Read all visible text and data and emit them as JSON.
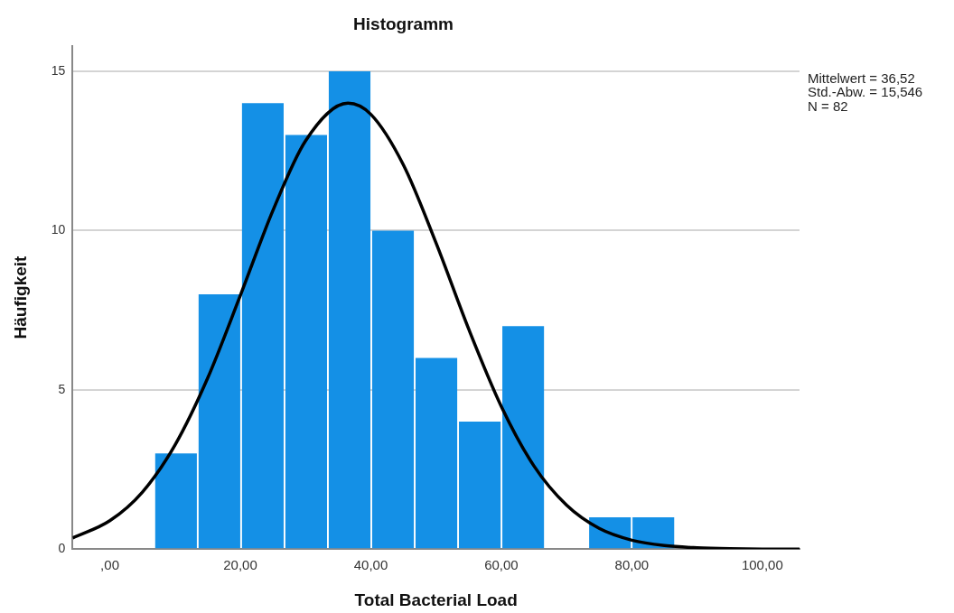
{
  "chart_data": {
    "type": "histogram",
    "title": "Histogramm",
    "xlabel": "Total Bacterial Load",
    "ylabel": "Häufigkeit",
    "bins": [
      6.8,
      13.5,
      20.1,
      26.8,
      33.4,
      40.1,
      46.7,
      53.4,
      60.0,
      66.7,
      73.3,
      80.0,
      86.6
    ],
    "values": [
      3,
      8,
      14,
      13,
      15,
      10,
      6,
      4,
      7,
      0,
      1,
      1
    ],
    "color": "#1490e6",
    "series": [
      {
        "type": "line",
        "color": "#000000",
        "x": [
          -5.7,
          0,
          5,
          10,
          15,
          20,
          25,
          30,
          36.5,
          40,
          45,
          50,
          55,
          60,
          65,
          70,
          75,
          80,
          85,
          90,
          95,
          100,
          105.7
        ],
        "values": [
          0.35,
          0.89,
          1.79,
          3.27,
          5.37,
          7.96,
          10.63,
          12.82,
          14.0,
          13.65,
          12.06,
          9.61,
          6.91,
          4.48,
          2.61,
          1.38,
          0.65,
          0.28,
          0.11,
          0.04,
          0.01,
          0,
          0
        ]
      }
    ],
    "xlim": [
      -5.7,
      105.7
    ],
    "xticks": [
      {
        "value": 0,
        "label": ",00"
      },
      {
        "value": 20,
        "label": "20,00"
      },
      {
        "value": 40,
        "label": "40,00"
      },
      {
        "value": 60,
        "label": "60,00"
      },
      {
        "value": 80,
        "label": "80,00"
      },
      {
        "value": 100,
        "label": "100,00"
      }
    ],
    "ylim": [
      0,
      15.8
    ],
    "yticks": [
      0,
      5,
      10,
      15
    ],
    "grid": "y",
    "legend": false,
    "annotations": [
      "Mittelwert = 36,52",
      "Std.-Abw. = 15,546",
      "N = 82"
    ]
  }
}
